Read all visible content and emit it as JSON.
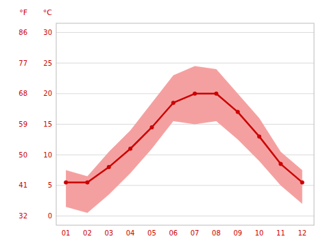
{
  "chart_data": {
    "type": "line",
    "x": [
      1,
      2,
      3,
      4,
      5,
      6,
      7,
      8,
      9,
      10,
      11,
      12
    ],
    "xlim": [
      0.55,
      12.55
    ],
    "xticks": [
      {
        "value": 1,
        "label": "01"
      },
      {
        "value": 2,
        "label": "02"
      },
      {
        "value": 3,
        "label": "03"
      },
      {
        "value": 4,
        "label": "04"
      },
      {
        "value": 5,
        "label": "05"
      },
      {
        "value": 6,
        "label": "06"
      },
      {
        "value": 7,
        "label": "07"
      },
      {
        "value": 8,
        "label": "08"
      },
      {
        "value": 9,
        "label": "09"
      },
      {
        "value": 10,
        "label": "10"
      },
      {
        "value": 11,
        "label": "11"
      },
      {
        "value": 12,
        "label": "12"
      }
    ],
    "ylabel": "°C",
    "ylim": [
      -1.5,
      31.5
    ],
    "yticks": [
      0,
      5,
      10,
      15,
      20,
      25,
      30
    ],
    "y2label": "°F",
    "y2lim": [
      29.3,
      88.7
    ],
    "y2ticks": [
      32,
      41,
      50,
      59,
      68,
      77,
      86
    ],
    "grid": true,
    "series": [
      {
        "type": "band",
        "color": "#f5a0a0",
        "high": [
          7.5,
          6.5,
          10.5,
          14.0,
          18.5,
          23.0,
          24.5,
          24.0,
          20.0,
          16.0,
          10.5,
          7.5
        ],
        "low": [
          1.5,
          0.5,
          3.5,
          7.0,
          11.0,
          15.5,
          15.0,
          15.5,
          12.5,
          9.0,
          5.0,
          2.0
        ]
      },
      {
        "type": "line",
        "color": "#cc0000",
        "marker": "circle",
        "values": [
          5.5,
          5.5,
          8.0,
          11.0,
          14.5,
          18.5,
          20.0,
          20.0,
          17.0,
          13.0,
          8.5,
          5.5
        ]
      }
    ]
  }
}
